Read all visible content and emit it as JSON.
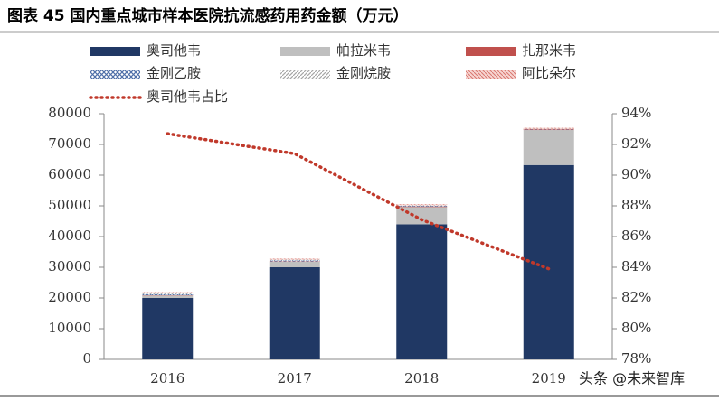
{
  "chart_data": {
    "type": "stacked-bar-line",
    "title": "图表 45 国内重点城市样本医院抗流感药用药金额（万元）",
    "watermark": "头条 @未来智库",
    "categories": [
      "2016",
      "2017",
      "2018",
      "2019"
    ],
    "series": [
      {
        "name": "奥司他韦",
        "color": "#203864",
        "pattern": "solid",
        "values": [
          20000,
          30000,
          44000,
          63300
        ]
      },
      {
        "name": "帕拉米韦",
        "color": "#bfbfbf",
        "pattern": "solid",
        "values": [
          800,
          1800,
          5600,
          11400
        ]
      },
      {
        "name": "扎那米韦",
        "color": "#c0504d",
        "pattern": "solid",
        "values": [
          100,
          100,
          200,
          200
        ]
      },
      {
        "name": "金刚乙胺",
        "color": "#4f6fa8",
        "pattern": "cross",
        "values": [
          300,
          300,
          200,
          100
        ]
      },
      {
        "name": "金刚烷胺",
        "color": "#a6a6a6",
        "pattern": "diagonal",
        "values": [
          300,
          300,
          200,
          100
        ]
      },
      {
        "name": "阿比朵尔",
        "color": "#d9776f",
        "pattern": "dots",
        "values": [
          400,
          300,
          300,
          300
        ]
      },
      {
        "name": "奥司他韦占比",
        "color": "#c0392b",
        "type": "line",
        "axis": "y2",
        "values": [
          92.7,
          91.4,
          87.1,
          83.9
        ]
      }
    ],
    "ylim": [
      0,
      80000
    ],
    "yticks": [
      0,
      10000,
      20000,
      30000,
      40000,
      50000,
      60000,
      70000,
      80000
    ],
    "y2lim": [
      78,
      94
    ],
    "y2ticks": [
      {
        "value": 78,
        "label": "78%"
      },
      {
        "value": 80,
        "label": "80%"
      },
      {
        "value": 82,
        "label": "82%"
      },
      {
        "value": 84,
        "label": "84%"
      },
      {
        "value": 86,
        "label": "86%"
      },
      {
        "value": 88,
        "label": "88%"
      },
      {
        "value": 90,
        "label": "90%"
      },
      {
        "value": 92,
        "label": "92%"
      },
      {
        "value": 94,
        "label": "94%"
      }
    ],
    "grid": false
  }
}
